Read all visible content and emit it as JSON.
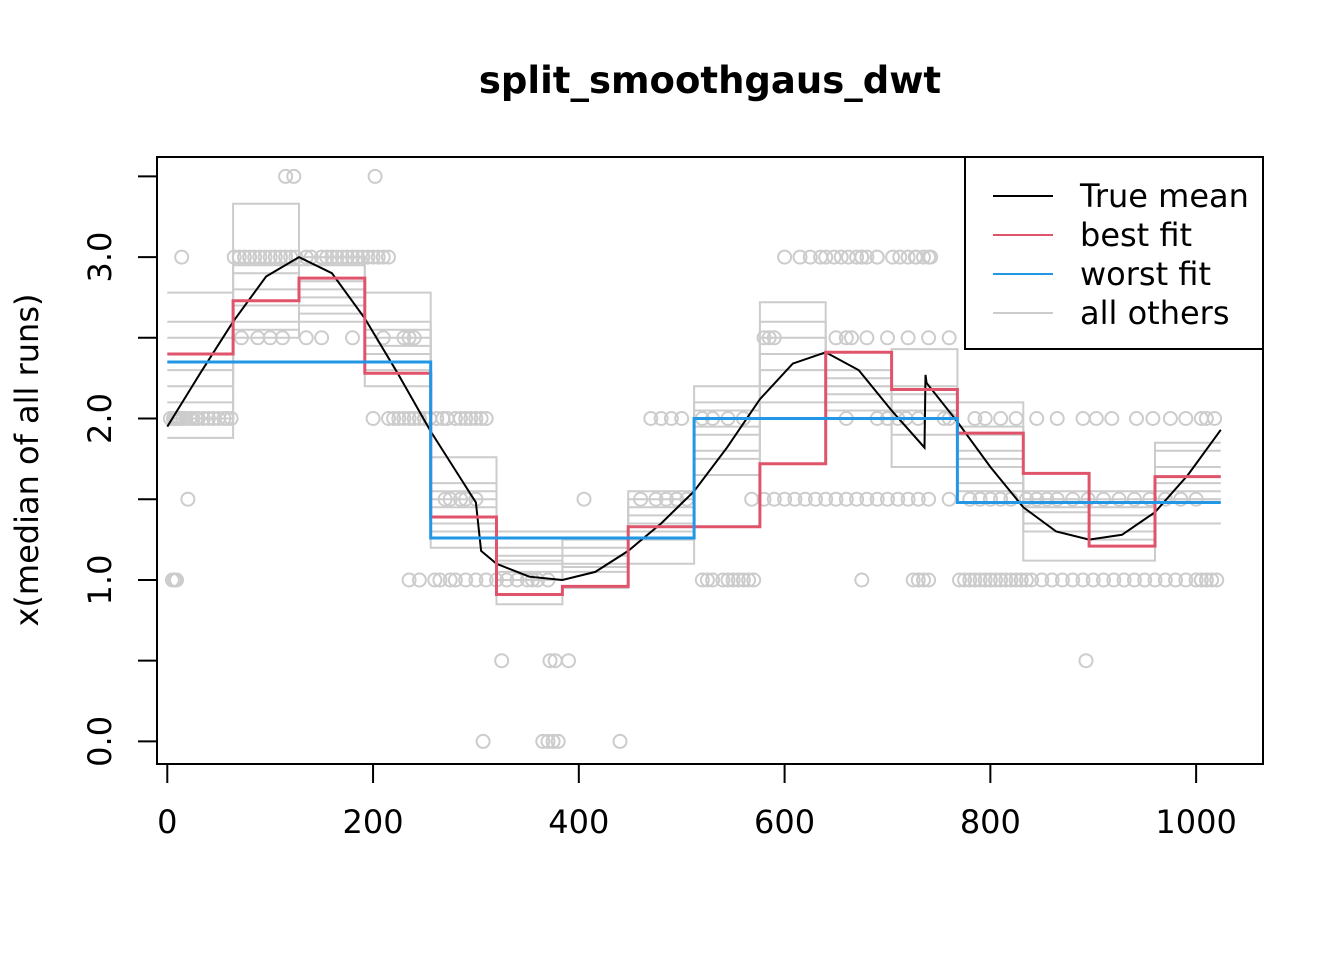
{
  "chart_data": {
    "type": "line",
    "title": "split_smoothgaus_dwt",
    "xlabel": "",
    "ylabel": "x(median of all runs)",
    "xlim": [
      -10,
      1065
    ],
    "ylim": [
      -0.14,
      3.62
    ],
    "x_ticks": [
      0,
      200,
      400,
      600,
      800,
      1000
    ],
    "x_tick_labels": [
      "0",
      "200",
      "400",
      "600",
      "800",
      "1000"
    ],
    "y_ticks": [
      0.0,
      0.5,
      1.0,
      1.5,
      2.0,
      2.5,
      3.0,
      3.5
    ],
    "y_tick_labels": [
      "0.0",
      "",
      "1.0",
      "",
      "2.0",
      "",
      "3.0",
      ""
    ],
    "grid": false,
    "legend_position": "top-right",
    "colors": {
      "true_mean": "#000000",
      "best_fit": "#DF536B",
      "worst_fit": "#2297E6",
      "all_others": "#CCCCCC",
      "points": "#CCCCCC"
    },
    "legend": [
      {
        "key": "true_mean",
        "label": "True mean"
      },
      {
        "key": "best_fit",
        "label": "best fit"
      },
      {
        "key": "worst_fit",
        "label": "worst fit"
      },
      {
        "key": "all_others",
        "label": "all others"
      }
    ],
    "true_mean": {
      "x": [
        0,
        32,
        64,
        96,
        128,
        160,
        192,
        224,
        256,
        288,
        300,
        305,
        320,
        352,
        384,
        416,
        448,
        480,
        512,
        544,
        576,
        608,
        640,
        672,
        704,
        736,
        737,
        738,
        768,
        800,
        832,
        864,
        896,
        928,
        960,
        992,
        1024
      ],
      "y": [
        1.95,
        2.28,
        2.6,
        2.88,
        3.0,
        2.9,
        2.62,
        2.28,
        1.92,
        1.6,
        1.48,
        1.18,
        1.1,
        1.02,
        1.0,
        1.05,
        1.18,
        1.35,
        1.55,
        1.82,
        2.12,
        2.34,
        2.41,
        2.3,
        2.05,
        1.82,
        2.27,
        2.22,
        1.98,
        1.7,
        1.45,
        1.3,
        1.25,
        1.28,
        1.42,
        1.65,
        1.93
      ]
    },
    "best_fit": {
      "breaks": [
        0,
        64,
        128,
        192,
        256,
        320,
        384,
        448,
        512,
        576,
        640,
        704,
        768,
        832,
        896,
        960,
        1024
      ],
      "values": [
        2.4,
        2.73,
        2.87,
        2.28,
        1.39,
        0.91,
        0.96,
        1.33,
        1.33,
        1.72,
        2.41,
        2.18,
        1.91,
        1.66,
        1.21,
        1.64
      ]
    },
    "worst_fit": {
      "breaks": [
        0,
        256,
        512,
        768,
        1024
      ],
      "values": [
        2.35,
        1.26,
        2.0,
        1.48
      ]
    },
    "all_others": [
      {
        "breaks": [
          0,
          64,
          128,
          192,
          256,
          320,
          384,
          448,
          512,
          576,
          640,
          704,
          768,
          832,
          896,
          960,
          1024
        ],
        "values": [
          2.5,
          2.9,
          2.8,
          2.45,
          1.5,
          1.1,
          1.1,
          1.4,
          1.9,
          2.1,
          2.2,
          2.1,
          1.8,
          1.5,
          1.4,
          1.55
        ]
      },
      {
        "breaks": [
          0,
          64,
          128,
          192,
          256,
          320,
          384,
          448,
          512,
          576,
          640,
          704,
          768,
          832,
          896,
          960,
          1024
        ],
        "values": [
          2.3,
          2.6,
          2.7,
          2.5,
          1.3,
          1.0,
          1.05,
          1.25,
          1.8,
          2.3,
          2.05,
          2.0,
          1.6,
          1.3,
          1.3,
          1.7
        ]
      },
      {
        "breaks": [
          0,
          64,
          128,
          192,
          256,
          320,
          384,
          448,
          512,
          576,
          640,
          704,
          768,
          832,
          896,
          960,
          1024
        ],
        "values": [
          2.2,
          3.33,
          2.95,
          2.78,
          1.76,
          1.2,
          1.25,
          1.55,
          2.2,
          2.72,
          2.2,
          2.43,
          1.95,
          1.45,
          1.5,
          1.85
        ]
      },
      {
        "breaks": [
          0,
          64,
          128,
          192,
          256,
          320,
          384,
          448,
          512,
          576,
          640,
          704,
          768,
          832,
          896,
          960,
          1024
        ],
        "values": [
          2.78,
          2.8,
          3.0,
          2.6,
          1.6,
          1.3,
          1.3,
          1.5,
          2.1,
          2.6,
          2.3,
          2.2,
          2.1,
          1.55,
          1.55,
          1.8
        ]
      },
      {
        "breaks": [
          0,
          64,
          128,
          192,
          256,
          320,
          384,
          448,
          512,
          576,
          640,
          704,
          768,
          832,
          896,
          960,
          1024
        ],
        "values": [
          2.0,
          2.5,
          2.6,
          2.2,
          1.2,
          0.85,
          0.95,
          1.1,
          1.65,
          2.0,
          2.0,
          1.7,
          1.55,
          1.12,
          1.12,
          1.35
        ]
      },
      {
        "breaks": [
          0,
          64,
          128,
          192,
          256,
          320,
          384,
          448,
          512,
          576,
          640,
          704,
          768,
          832,
          896,
          960,
          1024
        ],
        "values": [
          1.88,
          2.7,
          2.65,
          2.4,
          1.45,
          1.15,
          1.2,
          1.45,
          1.95,
          2.4,
          2.1,
          2.15,
          1.7,
          1.42,
          1.35,
          1.6
        ]
      },
      {
        "breaks": [
          0,
          64,
          128,
          192,
          256,
          320,
          384,
          448,
          512,
          576,
          640,
          704,
          768,
          832,
          896,
          960,
          1024
        ],
        "values": [
          2.6,
          2.95,
          2.85,
          2.3,
          1.35,
          1.05,
          1.15,
          1.3,
          2.05,
          2.2,
          2.15,
          1.9,
          1.9,
          1.5,
          1.25,
          1.5
        ]
      },
      {
        "breaks": [
          0,
          64,
          128,
          192,
          256,
          320,
          384,
          448,
          512,
          576,
          640,
          704,
          768,
          832,
          896,
          960,
          1024
        ],
        "values": [
          2.1,
          2.55,
          2.75,
          2.55,
          1.55,
          1.12,
          1.08,
          1.35,
          1.75,
          2.5,
          2.25,
          2.05,
          1.75,
          1.35,
          1.45,
          1.5
        ]
      }
    ],
    "points": {
      "x": [
        3,
        6,
        8,
        10,
        12,
        15,
        18,
        22,
        25,
        28,
        30,
        35,
        40,
        45,
        50,
        55,
        58,
        62,
        5,
        7,
        9,
        14,
        20,
        65,
        70,
        75,
        80,
        85,
        90,
        95,
        100,
        105,
        110,
        115,
        120,
        125,
        135,
        140,
        150,
        155,
        160,
        165,
        170,
        175,
        180,
        185,
        190,
        195,
        200,
        205,
        210,
        215,
        72,
        88,
        100,
        112,
        135,
        150,
        180,
        210,
        115,
        123,
        202,
        200,
        215,
        220,
        225,
        230,
        235,
        240,
        245,
        250,
        255,
        262,
        268,
        272,
        280,
        285,
        290,
        295,
        300,
        305,
        310,
        230,
        235,
        240,
        270,
        275,
        285,
        290,
        300,
        235,
        245,
        260,
        265,
        275,
        280,
        290,
        300,
        310,
        320,
        330,
        340,
        350,
        355,
        360,
        370,
        325,
        372,
        377,
        390,
        307,
        365,
        370,
        375,
        380,
        440,
        405,
        520,
        525,
        530,
        540,
        545,
        550,
        555,
        560,
        565,
        570,
        580,
        590,
        600,
        610,
        620,
        630,
        640,
        650,
        660,
        670,
        680,
        690,
        700,
        710,
        720,
        730,
        740,
        760,
        568,
        580,
        585,
        590,
        650,
        660,
        680,
        700,
        720,
        740,
        760,
        665,
        670,
        675,
        680,
        690,
        705,
        720,
        728,
        740,
        600,
        615,
        625,
        635,
        640,
        655,
        662,
        675,
        690,
        712,
        727,
        735,
        742,
        648,
        690,
        700,
        710,
        718,
        730,
        755,
        760,
        660,
        675,
        725,
        730,
        735,
        740,
        770,
        775,
        780,
        785,
        790,
        795,
        800,
        805,
        810,
        815,
        820,
        825,
        830,
        835,
        840,
        850,
        860,
        870,
        880,
        890,
        900,
        910,
        920,
        930,
        940,
        950,
        960,
        970,
        980,
        990,
        1000,
        1005,
        1010,
        1015,
        1020,
        780,
        790,
        800,
        810,
        820,
        835,
        845,
        855,
        865,
        880,
        895,
        910,
        925,
        940,
        955,
        970,
        985,
        1000,
        785,
        795,
        810,
        825,
        845,
        865,
        890,
        903,
        918,
        942,
        958,
        975,
        990,
        1005,
        1010,
        1018,
        893,
        520,
        530,
        545,
        560,
        470,
        480,
        490,
        500,
        460,
        475,
        485,
        495,
        505
      ],
      "y": [
        2.0,
        2.0,
        2.0,
        2.0,
        2.0,
        2.0,
        2.0,
        2.0,
        2.0,
        2.0,
        2.0,
        2.0,
        2.0,
        2.0,
        2.0,
        2.0,
        2.0,
        2.0,
        1.0,
        1.0,
        1.0,
        3.0,
        1.5,
        3.0,
        3.0,
        3.0,
        3.0,
        3.0,
        3.0,
        3.0,
        3.0,
        3.0,
        3.0,
        3.0,
        3.0,
        3.0,
        3.0,
        3.0,
        3.0,
        3.0,
        3.0,
        3.0,
        3.0,
        3.0,
        3.0,
        3.0,
        3.0,
        3.0,
        3.0,
        3.0,
        3.0,
        3.0,
        2.5,
        2.5,
        2.5,
        2.5,
        2.5,
        2.5,
        2.5,
        2.5,
        3.5,
        3.5,
        3.5,
        2.0,
        2.0,
        2.0,
        2.0,
        2.0,
        2.0,
        2.0,
        2.0,
        2.0,
        2.0,
        2.0,
        2.0,
        2.0,
        2.0,
        2.0,
        2.0,
        2.0,
        2.0,
        2.0,
        2.0,
        2.5,
        2.5,
        2.5,
        1.5,
        1.5,
        1.5,
        1.5,
        1.5,
        1.0,
        1.0,
        1.0,
        1.0,
        1.0,
        1.0,
        1.0,
        1.0,
        1.0,
        1.0,
        1.0,
        1.0,
        1.0,
        1.0,
        1.0,
        1.0,
        0.5,
        0.5,
        0.5,
        0.5,
        0.0,
        0.0,
        0.0,
        0.0,
        0.0,
        0.0,
        1.5,
        1.0,
        1.0,
        1.0,
        1.0,
        1.0,
        1.0,
        1.0,
        1.0,
        1.0,
        1.0,
        1.5,
        1.5,
        1.5,
        1.5,
        1.5,
        1.5,
        1.5,
        1.5,
        1.5,
        1.5,
        1.5,
        1.5,
        1.5,
        1.5,
        1.5,
        1.5,
        1.5,
        1.5,
        1.5,
        2.5,
        2.5,
        2.5,
        2.5,
        2.5,
        2.5,
        2.5,
        2.5,
        2.5,
        2.5,
        2.5,
        3.0,
        3.0,
        3.0,
        3.0,
        3.0,
        3.0,
        3.0,
        3.0,
        3.0,
        3.0,
        3.0,
        3.0,
        3.0,
        3.0,
        3.0,
        3.0,
        3.0,
        3.0,
        3.0,
        3.0,
        3.0,
        3.0,
        2.0,
        2.0,
        2.0,
        2.0,
        2.0,
        2.0,
        2.0,
        2.0,
        1.0,
        1.0,
        1.0,
        1.0,
        1.0,
        1.0,
        1.0,
        1.0,
        1.0,
        1.0,
        1.0,
        1.0,
        1.0,
        1.0,
        1.0,
        1.0,
        1.0,
        1.0,
        1.0,
        1.0,
        1.0,
        1.0,
        1.0,
        1.0,
        1.0,
        1.0,
        1.0,
        1.0,
        1.0,
        1.0,
        1.0,
        1.0,
        1.0,
        1.0,
        1.0,
        1.0,
        1.0,
        1.0,
        1.0,
        1.0,
        1.5,
        1.5,
        1.5,
        1.5,
        1.5,
        1.5,
        1.5,
        1.5,
        1.5,
        1.5,
        1.5,
        1.5,
        1.5,
        1.5,
        1.5,
        1.5,
        1.5,
        1.5,
        2.0,
        2.0,
        2.0,
        2.0,
        2.0,
        2.0,
        2.0,
        2.0,
        2.0,
        2.0,
        2.0,
        2.0,
        2.0,
        2.0,
        2.0,
        2.0,
        0.5,
        2.0,
        2.0,
        2.0,
        2.0,
        2.0,
        2.0,
        2.0,
        2.0,
        1.5,
        1.5,
        1.5,
        1.5,
        1.5
      ]
    }
  }
}
